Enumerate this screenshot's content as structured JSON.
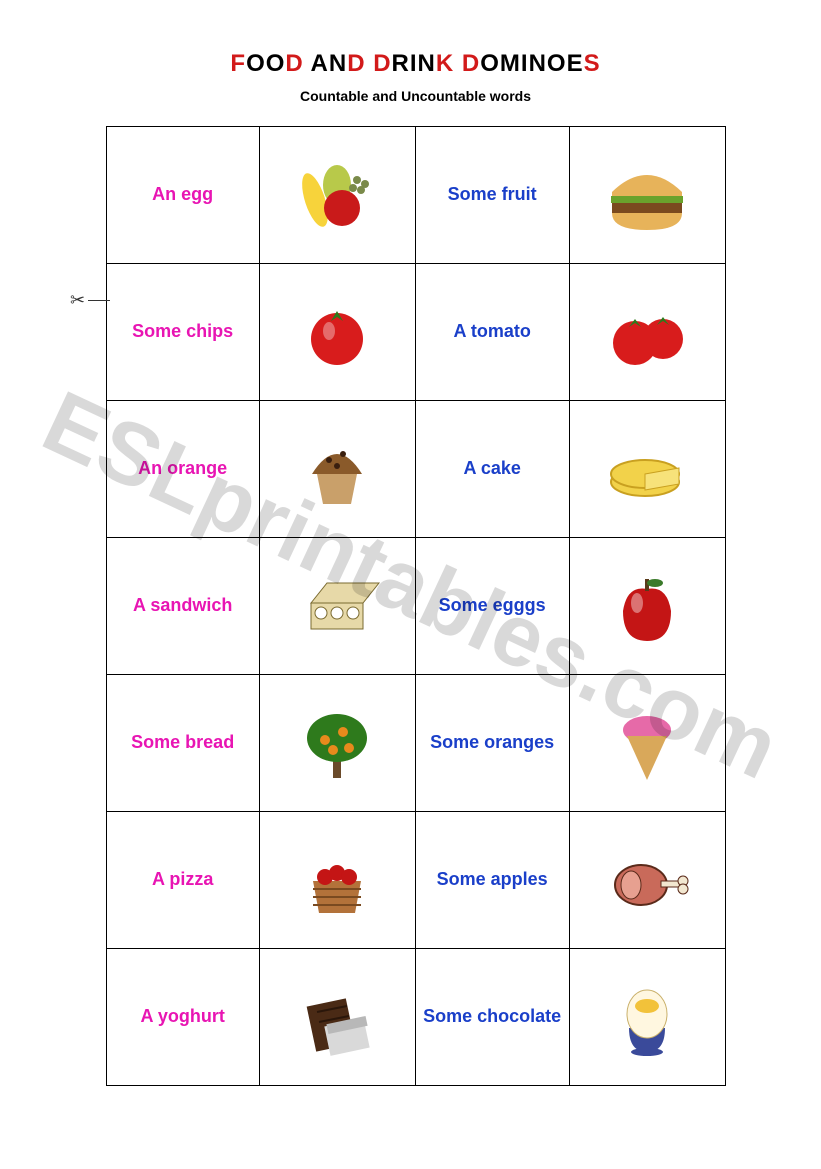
{
  "title": {
    "parts": [
      {
        "t": "F",
        "c": "red"
      },
      {
        "t": "OO",
        "c": "blk"
      },
      {
        "t": "D",
        "c": "red"
      },
      {
        "t": " A",
        "c": "blk"
      },
      {
        "t": "N",
        "c": "blk"
      },
      {
        "t": "D",
        "c": "red"
      },
      {
        "t": " D",
        "c": "red"
      },
      {
        "t": "RIN",
        "c": "blk"
      },
      {
        "t": "K",
        "c": "red"
      },
      {
        "t": " D",
        "c": "red"
      },
      {
        "t": "OMINO",
        "c": "blk"
      },
      {
        "t": "E",
        "c": "blk"
      },
      {
        "t": "S",
        "c": "red"
      }
    ],
    "fontsize": 24
  },
  "subtitle": "Countable and Uncountable words",
  "watermark": "ESLprintables.com",
  "colors": {
    "magenta": "#e815b3",
    "blue": "#1a3fc9",
    "red": "#d21a1a",
    "black": "#000000",
    "border": "#000000",
    "background": "#ffffff"
  },
  "label_font": "Comic Sans MS",
  "label_fontsize": 18,
  "rows": [
    [
      {
        "type": "text",
        "text": "An egg",
        "color": "magenta"
      },
      {
        "type": "icon",
        "icon": "fruit-mix"
      },
      {
        "type": "text",
        "text": "Some fruit",
        "color": "blue"
      },
      {
        "type": "icon",
        "icon": "burger"
      }
    ],
    [
      {
        "type": "text",
        "text": "Some chips",
        "color": "magenta"
      },
      {
        "type": "icon",
        "icon": "tomato"
      },
      {
        "type": "text",
        "text": "A tomato",
        "color": "blue"
      },
      {
        "type": "icon",
        "icon": "tomatoes"
      }
    ],
    [
      {
        "type": "text",
        "text": "An orange",
        "color": "magenta"
      },
      {
        "type": "icon",
        "icon": "muffin"
      },
      {
        "type": "text",
        "text": "A cake",
        "color": "blue"
      },
      {
        "type": "icon",
        "icon": "cheese"
      }
    ],
    [
      {
        "type": "text",
        "text": "A sandwich",
        "color": "magenta"
      },
      {
        "type": "icon",
        "icon": "egg-carton"
      },
      {
        "type": "text",
        "text": "Some egggs",
        "color": "blue"
      },
      {
        "type": "icon",
        "icon": "apple"
      }
    ],
    [
      {
        "type": "text",
        "text": "Some bread",
        "color": "magenta"
      },
      {
        "type": "icon",
        "icon": "orange-tree"
      },
      {
        "type": "text",
        "text": "Some oranges",
        "color": "blue"
      },
      {
        "type": "icon",
        "icon": "ice-cream"
      }
    ],
    [
      {
        "type": "text",
        "text": "A pizza",
        "color": "magenta"
      },
      {
        "type": "icon",
        "icon": "apple-basket"
      },
      {
        "type": "text",
        "text": "Some apples",
        "color": "blue"
      },
      {
        "type": "icon",
        "icon": "ham"
      }
    ],
    [
      {
        "type": "text",
        "text": "A yoghurt",
        "color": "magenta"
      },
      {
        "type": "icon",
        "icon": "chocolate"
      },
      {
        "type": "text",
        "text": "Some chocolate",
        "color": "blue"
      },
      {
        "type": "icon",
        "icon": "boiled-egg"
      }
    ]
  ],
  "icons": {
    "fruit-mix": {
      "name": "fruit-mix-icon",
      "colors": {
        "banana": "#f7d33b",
        "apple": "#c91a1a",
        "pear": "#b8c94a",
        "grapes": "#7a8a4a"
      }
    },
    "burger": {
      "name": "burger-icon",
      "colors": {
        "bun": "#e7b35a",
        "patty": "#7a4a1f",
        "lettuce": "#6aa22c"
      }
    },
    "tomato": {
      "name": "tomato-icon",
      "colors": {
        "body": "#d81c1c",
        "stem": "#2e7a1c"
      }
    },
    "tomatoes": {
      "name": "tomatoes-icon",
      "colors": {
        "body": "#d81c1c",
        "stem": "#2e7a1c"
      }
    },
    "muffin": {
      "name": "muffin-icon",
      "colors": {
        "top": "#8a5a2a",
        "base": "#c9a06a",
        "chips": "#3a1f0f"
      }
    },
    "cheese": {
      "name": "cheese-icon",
      "colors": {
        "wheel": "#f2d24a",
        "rind": "#c9a020",
        "cut": "#f7e27a"
      }
    },
    "egg-carton": {
      "name": "egg-carton-icon",
      "colors": {
        "box": "#e7d9a8",
        "egg": "#ffffff",
        "outline": "#7a6a30"
      }
    },
    "apple": {
      "name": "apple-icon",
      "colors": {
        "body": "#c41515",
        "shine": "#ffffff",
        "stem": "#5a3a1a",
        "leaf": "#3a7a2a"
      }
    },
    "orange-tree": {
      "name": "orange-tree-icon",
      "colors": {
        "leaves": "#2e7a1c",
        "fruit": "#e88a1c",
        "trunk": "#6a4a2a"
      }
    },
    "ice-cream": {
      "name": "ice-cream-icon",
      "colors": {
        "scoop": "#e66aa8",
        "cone": "#d9a85a"
      }
    },
    "apple-basket": {
      "name": "apple-basket-icon",
      "colors": {
        "basket": "#b3723a",
        "apples": "#c41515"
      }
    },
    "ham": {
      "name": "ham-icon",
      "colors": {
        "meat": "#c96a5a",
        "bone": "#f2e7d0",
        "outline": "#5a2a1a"
      }
    },
    "chocolate": {
      "name": "chocolate-icon",
      "colors": {
        "bar": "#4a2a15",
        "wrapper": "#d9d9d9",
        "foil": "#b8b8b8"
      }
    },
    "boiled-egg": {
      "name": "boiled-egg-icon",
      "colors": {
        "egg": "#fff7e0",
        "yolk": "#f2c23a",
        "cup": "#3a4a9a"
      }
    }
  }
}
